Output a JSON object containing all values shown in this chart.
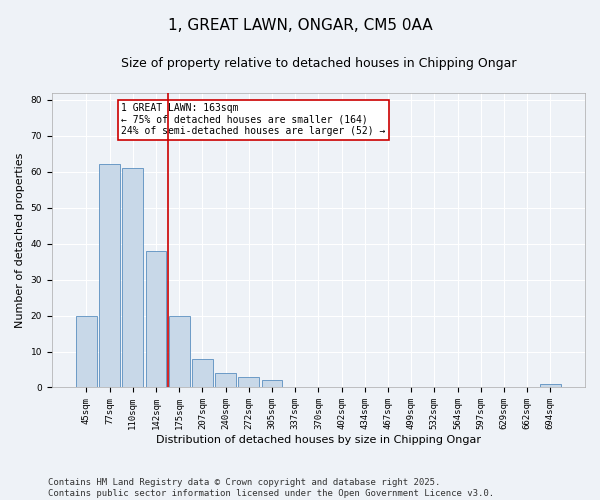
{
  "title": "1, GREAT LAWN, ONGAR, CM5 0AA",
  "subtitle": "Size of property relative to detached houses in Chipping Ongar",
  "xlabel": "Distribution of detached houses by size in Chipping Ongar",
  "ylabel": "Number of detached properties",
  "categories": [
    "45sqm",
    "77sqm",
    "110sqm",
    "142sqm",
    "175sqm",
    "207sqm",
    "240sqm",
    "272sqm",
    "305sqm",
    "337sqm",
    "370sqm",
    "402sqm",
    "434sqm",
    "467sqm",
    "499sqm",
    "532sqm",
    "564sqm",
    "597sqm",
    "629sqm",
    "662sqm",
    "694sqm"
  ],
  "values": [
    20,
    62,
    61,
    38,
    20,
    8,
    4,
    3,
    2,
    0,
    0,
    0,
    0,
    0,
    0,
    0,
    0,
    0,
    0,
    0,
    1
  ],
  "bar_color": "#c8d8e8",
  "bar_edge_color": "#5a8fc0",
  "red_line_x": 3.5,
  "marker_color": "#cc0000",
  "annotation_text": "1 GREAT LAWN: 163sqm\n← 75% of detached houses are smaller (164)\n24% of semi-detached houses are larger (52) →",
  "annotation_box_color": "#ffffff",
  "annotation_box_edge": "#cc0000",
  "ylim": [
    0,
    82
  ],
  "yticks": [
    0,
    10,
    20,
    30,
    40,
    50,
    60,
    70,
    80
  ],
  "footer": "Contains HM Land Registry data © Crown copyright and database right 2025.\nContains public sector information licensed under the Open Government Licence v3.0.",
  "bg_color": "#eef2f7",
  "plot_bg_color": "#eef2f7",
  "grid_color": "#ffffff",
  "title_fontsize": 11,
  "subtitle_fontsize": 9,
  "footer_fontsize": 6.5,
  "tick_fontsize": 6.5,
  "ylabel_fontsize": 8,
  "xlabel_fontsize": 8
}
